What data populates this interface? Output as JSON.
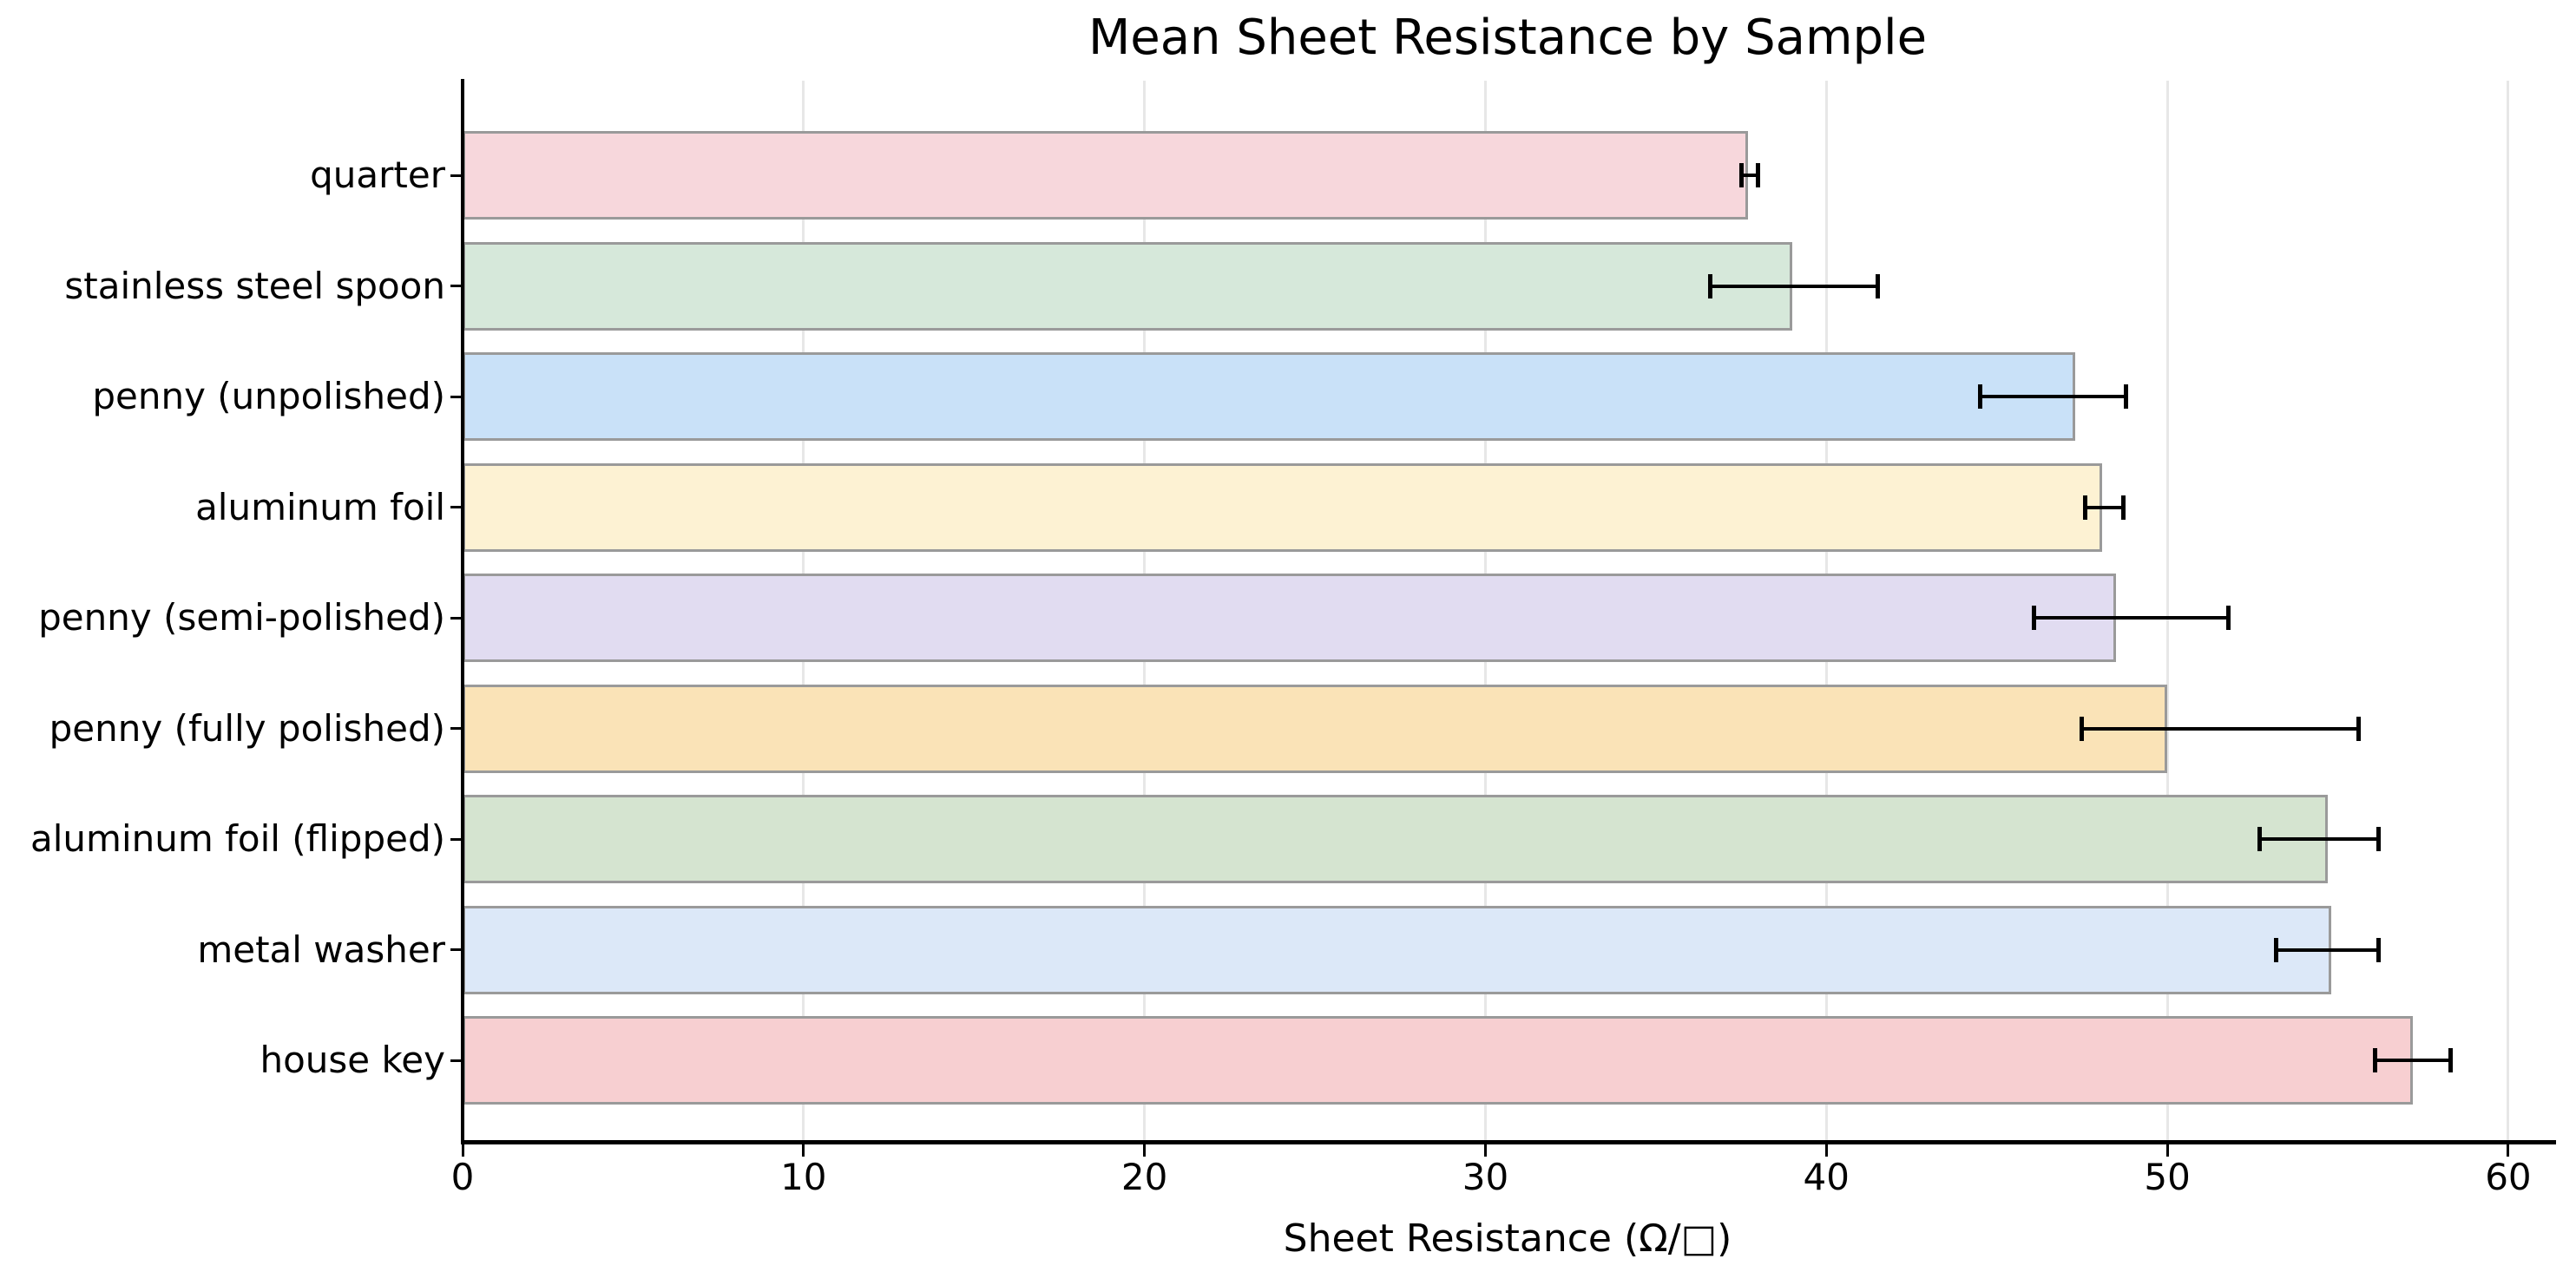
{
  "chart_data": {
    "type": "bar",
    "orientation": "horizontal",
    "title": "Mean Sheet Resistance by Sample",
    "xlabel": "Sheet Resistance (Ω/□)",
    "ylabel": "",
    "categories": [
      "quarter",
      "stainless steel spoon",
      "penny (unpolished)",
      "aluminum foil",
      "penny (semi-polished)",
      "penny (fully polished)",
      "aluminum foil (flipped)",
      "metal washer",
      "house key"
    ],
    "values": [
      37.7,
      39.0,
      47.3,
      48.1,
      48.5,
      50.0,
      54.7,
      54.8,
      57.2
    ],
    "error_caps_low": [
      37.5,
      36.6,
      44.5,
      47.6,
      46.1,
      47.5,
      52.7,
      53.2,
      56.1
    ],
    "error_caps_high": [
      38.0,
      41.5,
      48.8,
      48.7,
      51.8,
      55.6,
      56.2,
      56.2,
      58.3
    ],
    "x_ticks": [
      0,
      10,
      20,
      30,
      40,
      50,
      60
    ],
    "xlim": [
      0,
      61.3
    ],
    "grid": true,
    "legend": "none",
    "bar_colors": [
      "#f7d7dc",
      "#d6e8da",
      "#c9e1f8",
      "#fdf2d3",
      "#e1dcf1",
      "#fae3b7",
      "#d5e4d0",
      "#dce8f8",
      "#f7cfd1"
    ],
    "bar_edge_color": "#9a9a9a",
    "error_bar_color": "#000000",
    "grid_color": "#e7e7e7",
    "axis_color": "#000000",
    "background_color": "#ffffff"
  }
}
